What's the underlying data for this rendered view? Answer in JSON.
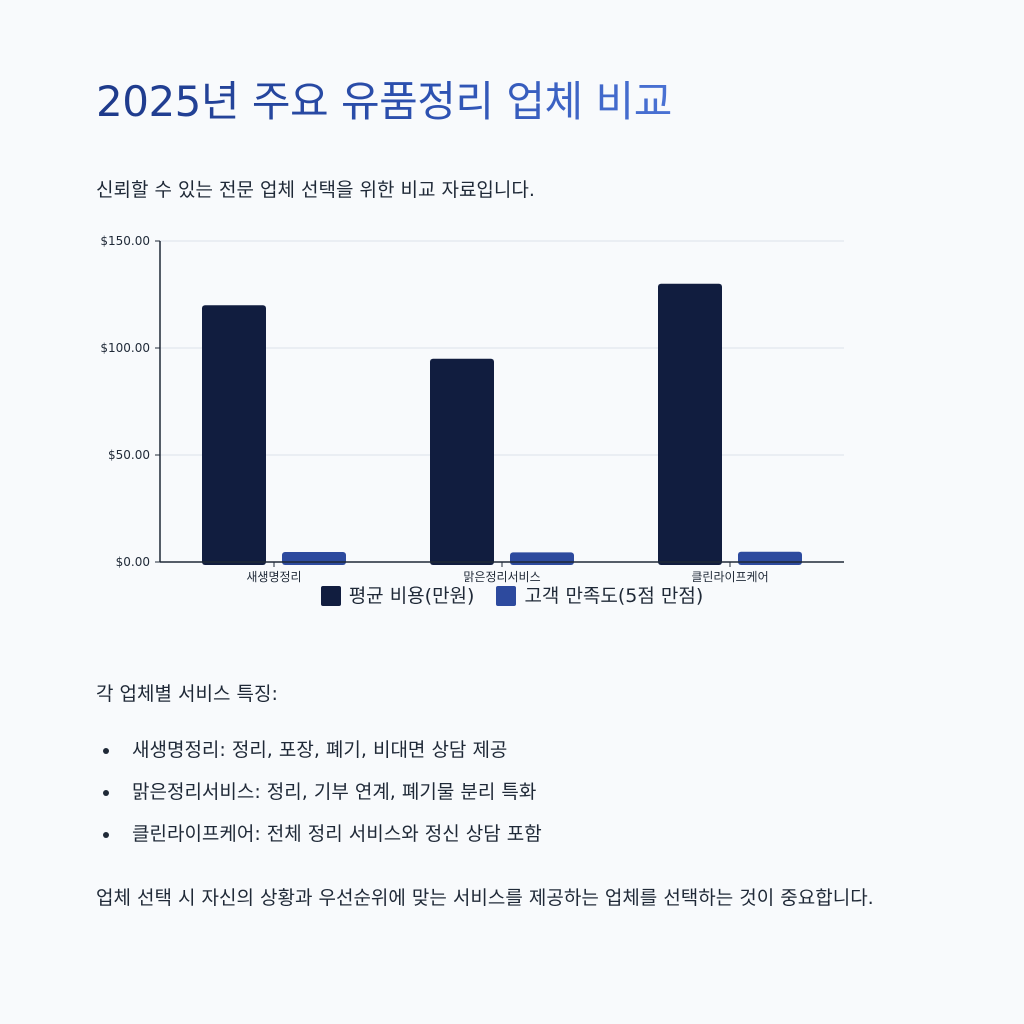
{
  "page": {
    "title": "2025년 주요 유품정리 업체 비교",
    "subtitle": "신뢰할 수 있는 전문 업체 선택을 위한 비교 자료입니다.",
    "features_heading": "각 업체별 서비스 특징:",
    "features": [
      "새생명정리: 정리, 포장, 폐기, 비대면 상담 제공",
      "맑은정리서비스: 정리, 기부 연계, 폐기물 분리 특화",
      "클린라이프케어: 전체 정리 서비스와 정신 상담 포함"
    ],
    "conclusion": "업체 선택 시 자신의 상황과 우선순위에 맞는 서비스를 제공하는 업체를 선택하는 것이 중요합니다."
  },
  "chart_data": {
    "type": "bar",
    "categories": [
      "새생명정리",
      "맑은정리서비스",
      "클린라이프케어"
    ],
    "series": [
      {
        "name": "평균 비용(만원)",
        "values": [
          120,
          95,
          130
        ],
        "color": "#111d3f"
      },
      {
        "name": "고객 만족도(5점 만점)",
        "values": [
          4.7,
          4.5,
          4.8
        ],
        "color": "#2d4a9e"
      }
    ],
    "ylim": [
      0,
      150
    ],
    "yticks": [
      0,
      50,
      100,
      150
    ],
    "ytick_labels": [
      "$0.00",
      "$50.00",
      "$100.00",
      "$150.00"
    ],
    "grid": true,
    "legend_position": "bottom"
  }
}
